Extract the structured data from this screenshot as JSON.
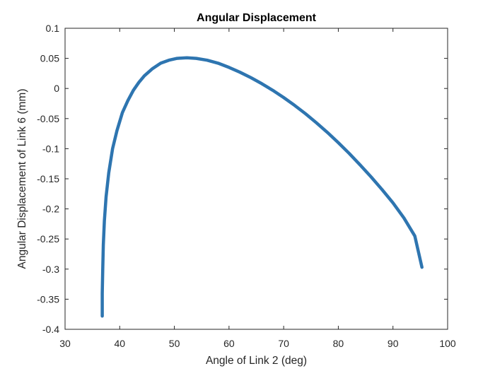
{
  "chart_data": {
    "type": "line",
    "title": "Angular Displacement",
    "xlabel": "Angle of Link 2 (deg)",
    "ylabel": "Angular Displacement of Link 6 (mm)",
    "xlim": [
      30,
      100
    ],
    "ylim": [
      -0.4,
      0.1
    ],
    "xticks": [
      30,
      40,
      50,
      60,
      70,
      80,
      90,
      100
    ],
    "yticks": [
      -0.4,
      -0.35,
      -0.3,
      -0.25,
      -0.2,
      -0.15,
      -0.1,
      -0.05,
      0,
      0.05,
      0.1
    ],
    "xtick_labels": [
      "30",
      "40",
      "50",
      "60",
      "70",
      "80",
      "90",
      "100"
    ],
    "ytick_labels": [
      "-0.4",
      "-0.35",
      "-0.3",
      "-0.25",
      "-0.2",
      "-0.15",
      "-0.1",
      "-0.05",
      "0",
      "0.05",
      "0.1"
    ],
    "grid": false,
    "series": [
      {
        "color": "#2E75B0",
        "x": [
          36.8,
          36.8,
          36.9,
          37.0,
          37.2,
          37.5,
          38.0,
          38.7,
          39.5,
          40.5,
          41.5,
          42.5,
          43.5,
          44.5,
          46.0,
          47.5,
          49.0,
          50.5,
          52.3,
          54.0,
          56.0,
          58.0,
          60.0,
          62.0,
          64.0,
          66.0,
          68.0,
          70.0,
          72.0,
          74.0,
          76.0,
          78.0,
          80.0,
          82.0,
          84.0,
          86.0,
          88.0,
          90.0,
          92.0,
          94.0,
          95.3
        ],
        "y": [
          -0.378,
          -0.34,
          -0.3,
          -0.26,
          -0.22,
          -0.18,
          -0.14,
          -0.1,
          -0.07,
          -0.04,
          -0.02,
          -0.003,
          0.01,
          0.021,
          0.033,
          0.042,
          0.047,
          0.05,
          0.051,
          0.05,
          0.047,
          0.042,
          0.035,
          0.027,
          0.018,
          0.008,
          -0.003,
          -0.015,
          -0.028,
          -0.042,
          -0.057,
          -0.073,
          -0.09,
          -0.108,
          -0.127,
          -0.147,
          -0.168,
          -0.19,
          -0.215,
          -0.245,
          -0.297
        ]
      }
    ]
  }
}
